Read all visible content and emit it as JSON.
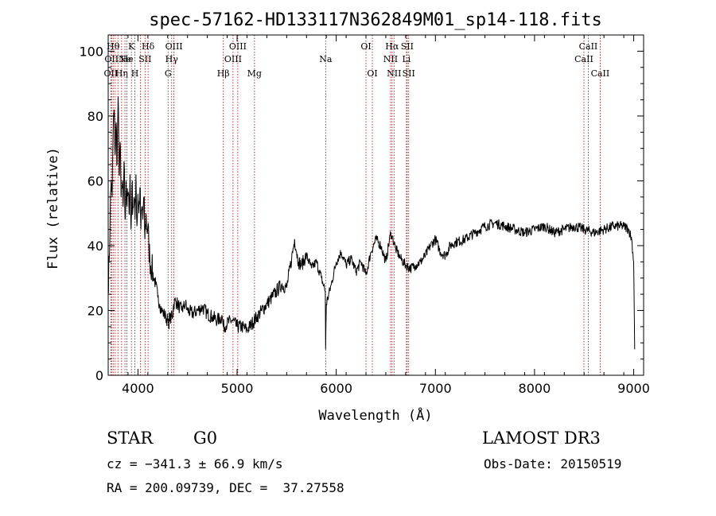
{
  "chart_data": {
    "type": "line",
    "title": "spec-57162-HD133117N362849M01_sp14-118.fits",
    "xlabel": "Wavelength (Å)",
    "ylabel": "Flux (relative)",
    "xlim": [
      3700,
      9100
    ],
    "ylim": [
      0,
      105
    ],
    "xticks": [
      4000,
      5000,
      6000,
      7000,
      8000,
      9000
    ],
    "yticks": [
      0,
      20,
      40,
      60,
      80,
      100
    ],
    "grid": false,
    "legend": "none",
    "colors": {
      "spectrum": "#000000",
      "lines": "#aa0000"
    },
    "series": [
      {
        "x": [
          3700,
          3710,
          3720,
          3730,
          3740,
          3750,
          3760,
          3770,
          3780,
          3790,
          3800,
          3810,
          3820,
          3830,
          3840,
          3850,
          3860,
          3870,
          3880,
          3890,
          3900,
          3910,
          3920,
          3930,
          3940,
          3950,
          3960,
          3970,
          3980,
          3990,
          4000,
          4010,
          4020,
          4030,
          4040,
          4050,
          4060,
          4070,
          4080,
          4090,
          4100,
          4110,
          4120,
          4140,
          4160,
          4180,
          4200,
          4220,
          4240,
          4260,
          4280,
          4300,
          4310,
          4320,
          4330,
          4340,
          4350,
          4360,
          4380,
          4400,
          4420,
          4440,
          4460,
          4480,
          4500,
          4550,
          4600,
          4650,
          4700,
          4750,
          4800,
          4850,
          4861,
          4900,
          4950,
          5000,
          5050,
          5100,
          5150,
          5200,
          5250,
          5300,
          5350,
          5400,
          5450,
          5500,
          5550,
          5580,
          5600,
          5620,
          5650,
          5700,
          5750,
          5800,
          5850,
          5890,
          5893,
          5900,
          5950,
          6000,
          6050,
          6100,
          6150,
          6200,
          6250,
          6300,
          6350,
          6400,
          6450,
          6500,
          6550,
          6563,
          6600,
          6650,
          6700,
          6750,
          6800,
          6850,
          6900,
          6950,
          7000,
          7050,
          7100,
          7150,
          7200,
          7300,
          7400,
          7500,
          7600,
          7700,
          7800,
          7900,
          8000,
          8100,
          8200,
          8300,
          8400,
          8500,
          8600,
          8700,
          8800,
          8900,
          8950,
          8980,
          9000,
          9010
        ],
        "y": [
          28,
          35,
          50,
          60,
          55,
          75,
          82,
          68,
          78,
          65,
          86,
          62,
          72,
          55,
          58,
          52,
          66,
          48,
          60,
          52,
          56,
          50,
          62,
          45,
          58,
          52,
          55,
          48,
          62,
          46,
          56,
          50,
          58,
          45,
          52,
          48,
          55,
          42,
          50,
          45,
          46,
          40,
          36,
          33,
          30,
          28,
          24,
          22,
          20,
          19,
          18,
          17,
          15,
          19,
          16,
          20,
          18,
          22,
          23,
          22,
          21,
          20,
          21,
          22,
          20,
          19,
          20,
          21,
          19,
          18,
          17,
          18,
          15,
          16,
          17,
          15,
          15,
          14,
          16,
          18,
          20,
          22,
          24,
          26,
          28,
          27,
          36,
          42,
          38,
          35,
          34,
          37,
          33,
          35,
          30,
          26,
          8,
          22,
          28,
          35,
          38,
          34,
          36,
          32,
          35,
          31,
          38,
          42,
          40,
          35,
          44,
          43,
          39,
          36,
          34,
          33,
          34,
          35,
          37,
          40,
          42,
          38,
          37,
          40,
          41,
          42,
          44,
          46,
          47,
          46,
          45,
          44,
          45,
          46,
          44,
          45,
          46,
          45,
          44,
          45,
          46,
          46,
          45,
          42,
          35,
          8
        ]
      }
    ],
    "lines": [
      {
        "w": 3727,
        "label": "OII",
        "row": 3
      },
      {
        "w": 3734,
        "label": "OII",
        "row": 2
      },
      {
        "w": 3750,
        "label": "Hθ",
        "row": 1
      },
      {
        "w": 3771,
        "label": "",
        "row": 0
      },
      {
        "w": 3798,
        "label": "",
        "row": 0
      },
      {
        "w": 3835,
        "label": "Hη",
        "row": 3
      },
      {
        "w": 3869,
        "label": "Ne",
        "row": 2
      },
      {
        "w": 3889,
        "label": "He",
        "row": 2
      },
      {
        "w": 3934,
        "label": "K",
        "row": 1
      },
      {
        "w": 3969,
        "label": "H",
        "row": 3
      },
      {
        "w": 4026,
        "label": "",
        "row": 0
      },
      {
        "w": 4072,
        "label": "SII",
        "row": 2
      },
      {
        "w": 4102,
        "label": "Hδ",
        "row": 1
      },
      {
        "w": 4304,
        "label": "G",
        "row": 3
      },
      {
        "w": 4340,
        "label": "Hγ",
        "row": 2
      },
      {
        "w": 4363,
        "label": "OIII",
        "row": 1
      },
      {
        "w": 4861,
        "label": "Hβ",
        "row": 3
      },
      {
        "w": 4959,
        "label": "OIII",
        "row": 2
      },
      {
        "w": 5007,
        "label": "OIII",
        "row": 1
      },
      {
        "w": 5175,
        "label": "Mg",
        "row": 3
      },
      {
        "w": 5893,
        "label": "Na",
        "row": 2
      },
      {
        "w": 6300,
        "label": "OI",
        "row": 1
      },
      {
        "w": 6364,
        "label": "OI",
        "row": 3
      },
      {
        "w": 6548,
        "label": "NII",
        "row": 2
      },
      {
        "w": 6563,
        "label": "Hα",
        "row": 1
      },
      {
        "w": 6583,
        "label": "NII",
        "row": 3
      },
      {
        "w": 6708,
        "label": "Li",
        "row": 2
      },
      {
        "w": 6716,
        "label": "SII",
        "row": 1
      },
      {
        "w": 6731,
        "label": "SII",
        "row": 3
      },
      {
        "w": 8498,
        "label": "CaII",
        "row": 2
      },
      {
        "w": 8542,
        "label": "CaII",
        "row": 1
      },
      {
        "w": 8662,
        "label": "CaII",
        "row": 3
      }
    ]
  },
  "info": {
    "class_label": "STAR",
    "subclass": "G0",
    "survey": "LAMOST DR3",
    "cz": "cz = −341.3 ± 66.9 km/s",
    "obs_date": "Obs-Date: 20150519",
    "coords": "RA = 200.09739, DEC =  37.27558"
  }
}
